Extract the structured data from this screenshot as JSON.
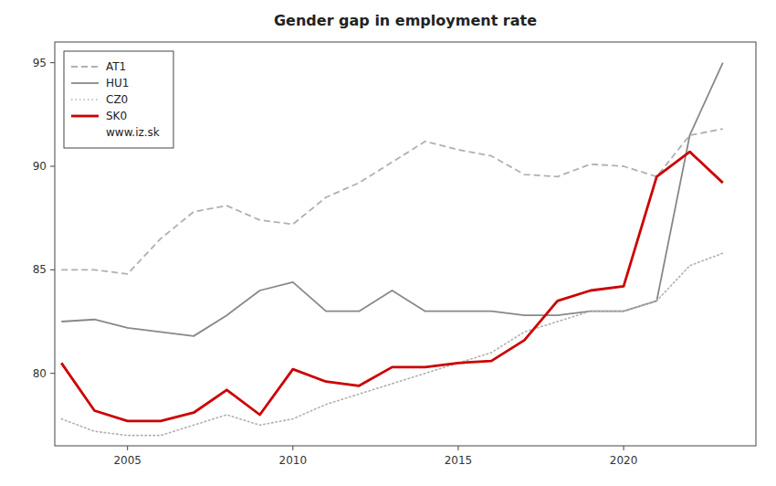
{
  "chart_data": {
    "type": "line",
    "title": "Gender gap in employment rate",
    "x": [
      2003,
      2004,
      2005,
      2006,
      2007,
      2008,
      2009,
      2010,
      2011,
      2012,
      2013,
      2014,
      2015,
      2016,
      2017,
      2018,
      2019,
      2020,
      2021,
      2022,
      2023
    ],
    "series": [
      {
        "name": "AT1",
        "color": "#b0b0b0",
        "line_style": "dashed",
        "values": [
          85.0,
          85.0,
          84.8,
          86.5,
          87.8,
          88.1,
          87.4,
          87.2,
          88.5,
          89.2,
          90.2,
          91.2,
          90.8,
          90.5,
          89.6,
          89.5,
          90.1,
          90.0,
          89.5,
          91.5,
          91.8
        ]
      },
      {
        "name": "HU1",
        "color": "#888888",
        "line_style": "solid",
        "values": [
          82.5,
          82.6,
          82.2,
          82.0,
          81.8,
          82.8,
          84.0,
          84.4,
          83.0,
          83.0,
          84.0,
          83.0,
          83.0,
          83.0,
          82.8,
          82.8,
          83.0,
          83.0,
          83.5,
          91.5,
          95.0
        ]
      },
      {
        "name": "CZ0",
        "color": "#b0b0b0",
        "line_style": "dotted",
        "values": [
          77.8,
          77.2,
          77.0,
          77.0,
          77.5,
          78.0,
          77.5,
          77.8,
          78.5,
          79.0,
          79.5,
          80.0,
          80.5,
          81.0,
          82.0,
          82.5,
          83.0,
          83.0,
          83.5,
          85.2,
          85.8
        ]
      },
      {
        "name": "SK0",
        "color": "#cc0000",
        "line_style": "solid",
        "values": [
          80.5,
          78.2,
          77.7,
          77.7,
          78.1,
          79.2,
          78.0,
          80.2,
          79.6,
          79.4,
          80.3,
          80.3,
          80.5,
          80.6,
          81.6,
          83.5,
          84.0,
          84.2,
          89.5,
          90.7,
          89.2
        ]
      }
    ],
    "xlim": [
      2002.8,
      2024.0
    ],
    "ylim": [
      76.5,
      96.0
    ],
    "xticks": [
      2005,
      2010,
      2015,
      2020
    ],
    "yticks": [
      80,
      85,
      90,
      95
    ],
    "grid": false,
    "legend": "upper left",
    "annotations": [
      "www.iz.sk"
    ]
  }
}
